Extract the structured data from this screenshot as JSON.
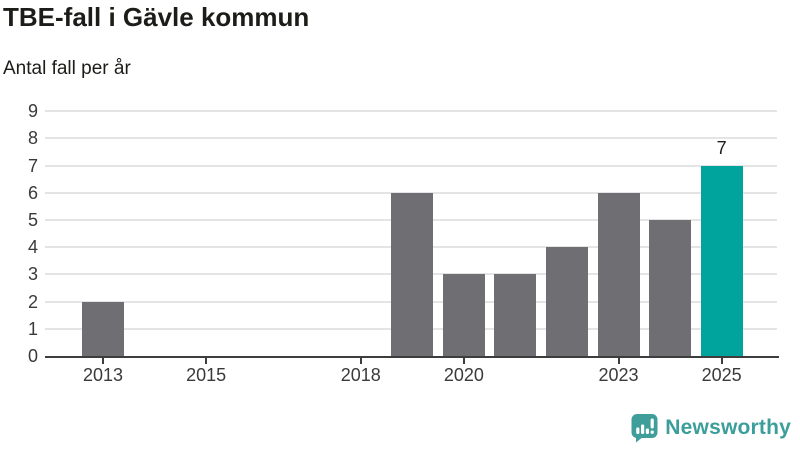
{
  "header": {
    "title": "TBE-fall i Gävle kommun",
    "subtitle": "Antal fall per år"
  },
  "chart_data": {
    "type": "bar",
    "title": "TBE-fall i Gävle kommun",
    "xlabel": "",
    "ylabel": "Antal fall per år",
    "x": [
      2013,
      2014,
      2015,
      2016,
      2017,
      2018,
      2019,
      2020,
      2021,
      2022,
      2023,
      2024,
      2025
    ],
    "values": [
      2,
      0,
      0,
      0,
      0,
      0,
      6,
      3,
      3,
      4,
      6,
      5,
      7
    ],
    "x_ticks": [
      2013,
      2015,
      2018,
      2020,
      2023,
      2025
    ],
    "y_ticks": [
      0,
      1,
      2,
      3,
      4,
      5,
      6,
      7,
      8,
      9
    ],
    "ylim": [
      0,
      9
    ],
    "grid": true,
    "legend": "none",
    "highlight": {
      "x": 2025,
      "value": 7,
      "label": "7"
    },
    "colors": {
      "bar": "#6e6e73",
      "highlight": "#00a49c",
      "grid": "#e4e4e4",
      "axis": "#3d3d3d",
      "tick_text": "#3a3a3a"
    }
  },
  "footer": {
    "brand": "Newsworthy",
    "brand_color": "#3b9e9a",
    "logo_icon": "bar-chart-speech-bubble-icon",
    "logo_bg_color": "#3f9e9a"
  }
}
